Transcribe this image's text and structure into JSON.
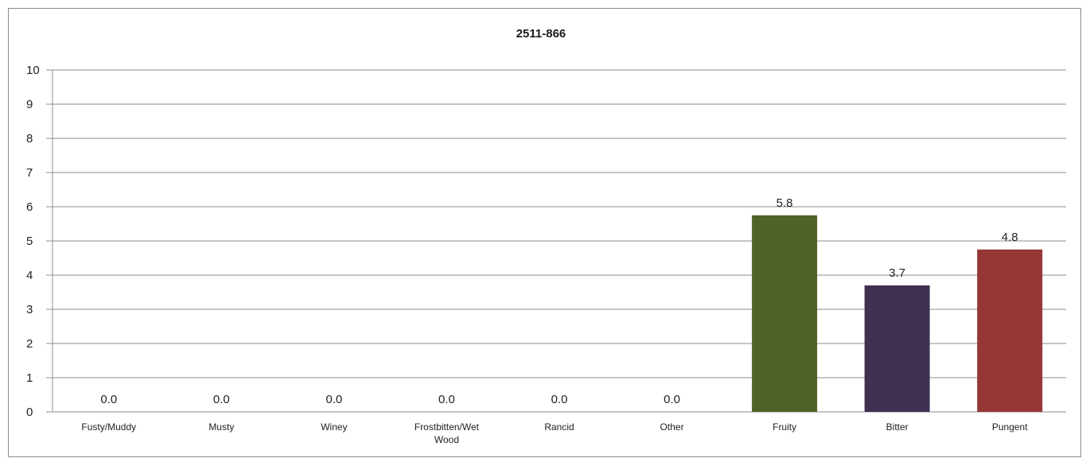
{
  "chart_data": {
    "type": "bar",
    "title": "2511-866",
    "categories": [
      "Fusty/Muddy",
      "Musty",
      "Winey",
      "Frostbitten/Wet Wood",
      "Rancid",
      "Other",
      "Fruity",
      "Bitter",
      "Pungent"
    ],
    "values": [
      0.0,
      0.0,
      0.0,
      0.0,
      0.0,
      0.0,
      5.75,
      3.7,
      4.75
    ],
    "data_labels": [
      "0.0",
      "0.0",
      "0.0",
      "0.0",
      "0.0",
      "0.0",
      "5.8",
      "3.7",
      "4.8"
    ],
    "colors": [
      "#4f6228",
      "#4f6228",
      "#4f6228",
      "#4f6228",
      "#4f6228",
      "#4f6228",
      "#4f6228",
      "#3f3151",
      "#953735"
    ],
    "ylim": [
      0,
      10
    ],
    "yticks": [
      "0",
      "1",
      "2",
      "3",
      "4",
      "5",
      "6",
      "7",
      "8",
      "9",
      "10"
    ],
    "grid": true,
    "xlabel": "",
    "ylabel": ""
  }
}
